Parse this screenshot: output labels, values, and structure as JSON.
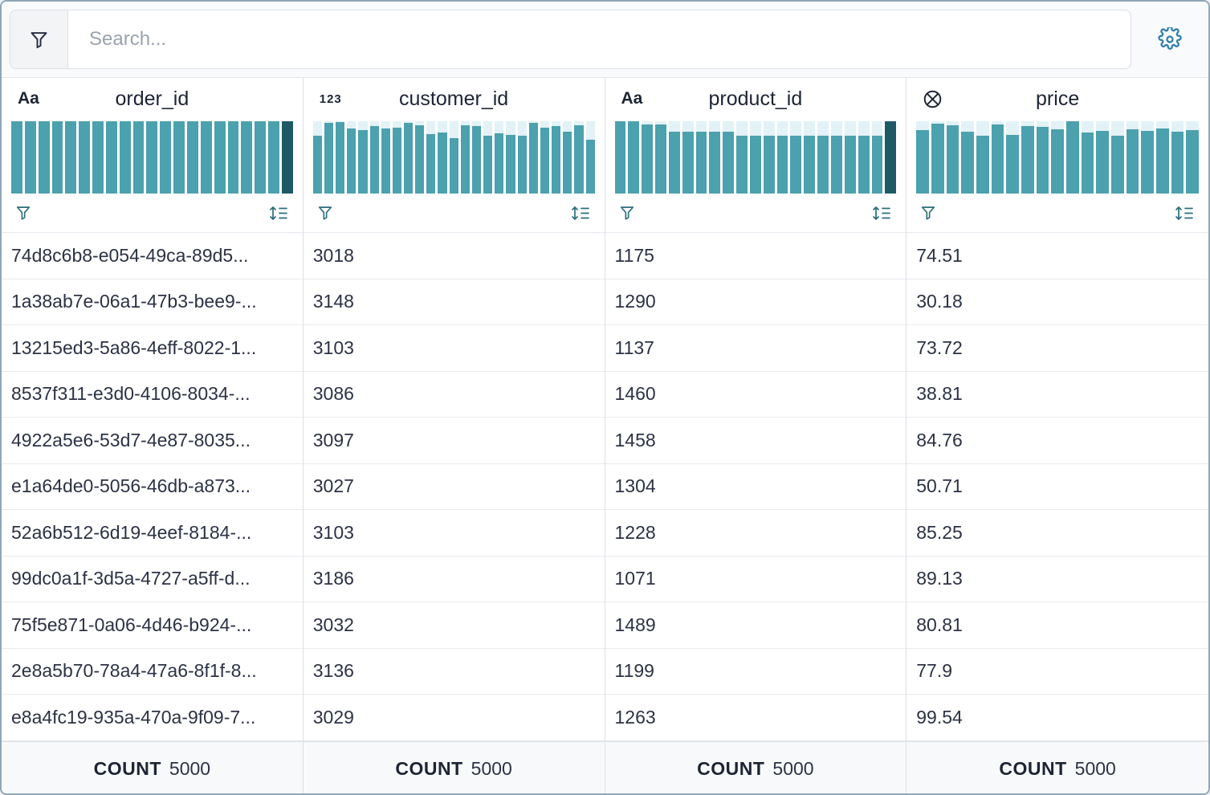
{
  "toolbar": {
    "search_placeholder": "Search...",
    "filter_icon": "funnel",
    "settings_icon": "gear"
  },
  "colors": {
    "bar": "#4BA1AD",
    "bar_dark": "#1E5A66",
    "bar_track": "#E2F2F7",
    "control_teal": "#2A6E7A",
    "gear_blue": "#2E7CAB"
  },
  "footer_label": "COUNT",
  "columns": [
    {
      "name": "order_id",
      "type_icon": "Aa",
      "count": "5000",
      "histogram": {
        "heights": [
          100,
          100,
          100,
          100,
          100,
          100,
          100,
          100,
          100,
          100,
          100,
          100,
          100,
          100,
          100,
          100,
          100,
          100,
          100,
          100,
          100
        ],
        "dark_indices": [
          20
        ]
      },
      "values": [
        "74d8c6b8-e054-49ca-89d5...",
        "1a38ab7e-06a1-47b3-bee9-...",
        "13215ed3-5a86-4eff-8022-1...",
        "8537f311-e3d0-4106-8034-...",
        "4922a5e6-53d7-4e87-8035...",
        "e1a64de0-5056-46db-a873...",
        "52a6b512-6d19-4eef-8184-...",
        "99dc0a1f-3d5a-4727-a5ff-d...",
        "75f5e871-0a06-4d46-b924-...",
        "2e8a5b70-78a4-47a6-8f1f-8...",
        "e8a4fc19-935a-470a-9f09-7..."
      ]
    },
    {
      "name": "customer_id",
      "type_icon": "123",
      "count": "5000",
      "histogram": {
        "heights": [
          80,
          98,
          99,
          90,
          88,
          93,
          90,
          91,
          98,
          94,
          82,
          84,
          77,
          95,
          93,
          80,
          83,
          81,
          80,
          98,
          91,
          93,
          86,
          94,
          74
        ],
        "dark_indices": []
      },
      "values": [
        "3018",
        "3148",
        "3103",
        "3086",
        "3097",
        "3027",
        "3103",
        "3186",
        "3032",
        "3136",
        "3029"
      ]
    },
    {
      "name": "product_id",
      "type_icon": "Aa",
      "count": "5000",
      "histogram": {
        "heights": [
          100,
          100,
          96,
          96,
          86,
          86,
          86,
          86,
          86,
          80,
          80,
          80,
          80,
          80,
          80,
          80,
          80,
          80,
          80,
          80,
          100
        ],
        "dark_indices": [
          20
        ]
      },
      "values": [
        "1175",
        "1290",
        "1137",
        "1460",
        "1458",
        "1304",
        "1228",
        "1071",
        "1489",
        "1199",
        "1263"
      ]
    },
    {
      "name": "price",
      "type_icon": "circle-x",
      "count": "5000",
      "histogram": {
        "heights": [
          88,
          97,
          94,
          86,
          80,
          96,
          81,
          93,
          92,
          89,
          100,
          85,
          87,
          80,
          89,
          87,
          90,
          86,
          88
        ],
        "dark_indices": []
      },
      "values": [
        "74.51",
        "30.18",
        "73.72",
        "38.81",
        "84.76",
        "50.71",
        "85.25",
        "89.13",
        "80.81",
        "77.9",
        "99.54"
      ]
    }
  ]
}
